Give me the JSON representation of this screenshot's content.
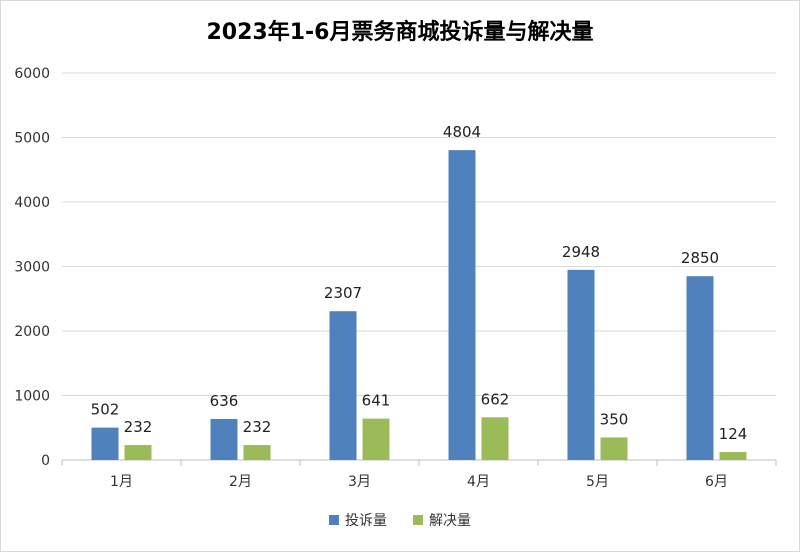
{
  "chart_data": {
    "type": "bar",
    "title": "2023年1-6月票务商城投诉量与解决量",
    "xlabel": "",
    "ylabel": "",
    "categories": [
      "1月",
      "2月",
      "3月",
      "4月",
      "5月",
      "6月"
    ],
    "series": [
      {
        "name": "投诉量",
        "values": [
          502,
          636,
          2307,
          4804,
          2948,
          2850
        ],
        "color": "#4f81bd"
      },
      {
        "name": "解决量",
        "values": [
          232,
          232,
          641,
          662,
          350,
          124
        ],
        "color": "#9bbb59"
      }
    ],
    "ylim": [
      0,
      6000
    ],
    "yticks": [
      "0",
      "1000",
      "2000",
      "3000",
      "4000",
      "5000",
      "6000"
    ],
    "grid": true,
    "legend": "bottom"
  }
}
